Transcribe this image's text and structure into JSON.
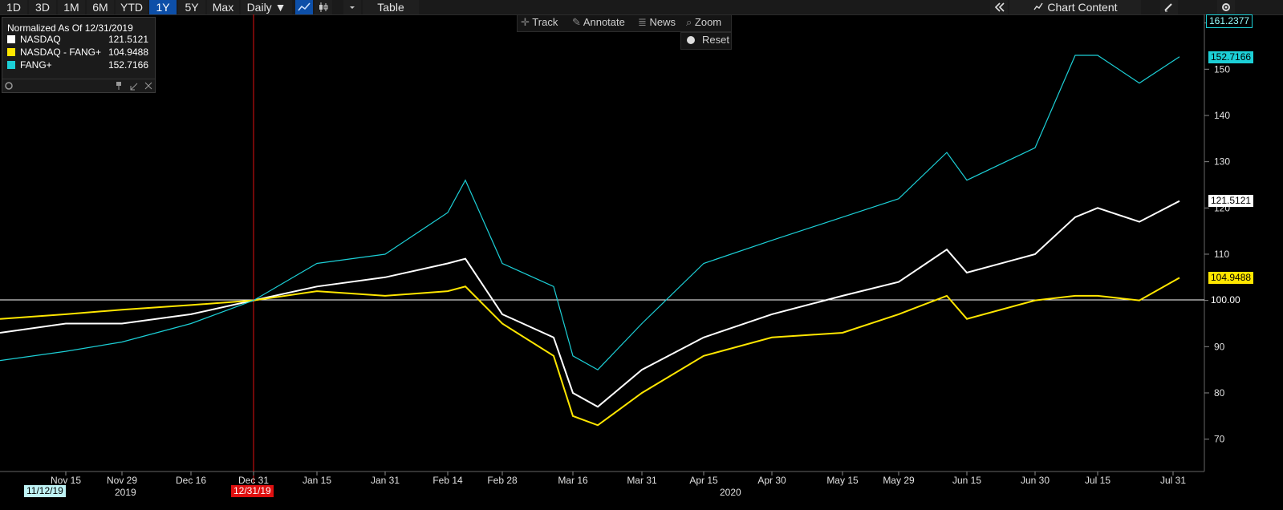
{
  "toolbar": {
    "periods": [
      "1D",
      "3D",
      "1M",
      "6M",
      "YTD",
      "1Y",
      "5Y",
      "Max"
    ],
    "active_period": "1Y",
    "frequency": "Daily ▼",
    "table_label": "Table",
    "chart_content_label": "Chart Content",
    "chart_content_icon": "double-chevron-left-icon"
  },
  "chart_menu": {
    "track": "Track",
    "annotate": "Annotate",
    "news": "News",
    "zoom": "Zoom",
    "reset": "Reset"
  },
  "legend": {
    "title": "Normalized As Of 12/31/2019",
    "items": [
      {
        "name": "NASDAQ",
        "value": "121.5121",
        "color": "#ffffff"
      },
      {
        "name": "NASDAQ - FANG+",
        "value": "104.9488",
        "color": "#ffe600"
      },
      {
        "name": "FANG+",
        "value": "152.7166",
        "color": "#1ccfd6"
      }
    ]
  },
  "right_axis": {
    "top_tag": "161.2377",
    "ticks": [
      "160",
      "150",
      "140",
      "130",
      "120",
      "110",
      "100",
      "90",
      "80",
      "70"
    ],
    "tags": {
      "fang": "152.7166",
      "nasdaq": "121.5121",
      "nasdaq_ex": "104.9488",
      "base": "100.00"
    }
  },
  "x_axis": {
    "labels": [
      "Nov 15",
      "Nov 29",
      "Dec 16",
      "Dec 31",
      "Jan 15",
      "Jan 31",
      "Feb 14",
      "Feb 28",
      "Mar 16",
      "Mar 31",
      "Apr 15",
      "Apr 30",
      "May 15",
      "May 29",
      "Jun 15",
      "Jun 30",
      "Jul 15",
      "Jul 31"
    ],
    "years": [
      "2019",
      "2020"
    ],
    "start_tag": "11/12/19",
    "marker_tag": "12/31/19"
  },
  "chart_data": {
    "type": "line",
    "ylim": [
      63,
      161.5
    ],
    "baseline": 100,
    "x": [
      "Nov 12",
      "Nov 15",
      "Nov 29",
      "Dec 16",
      "Dec 31",
      "Jan 15",
      "Jan 31",
      "Feb 14",
      "Feb 20",
      "Feb 28",
      "Mar 9",
      "Mar 16",
      "Mar 23",
      "Mar 31",
      "Apr 15",
      "Apr 30",
      "May 15",
      "May 29",
      "Jun 9",
      "Jun 15",
      "Jun 30",
      "Jul 10",
      "Jul 15",
      "Jul 24",
      "Jul 31"
    ],
    "series": [
      {
        "name": "NASDAQ",
        "color": "#ffffff",
        "values": [
          93,
          95,
          95,
          97,
          100,
          103,
          105,
          108,
          109,
          97,
          92,
          80,
          77,
          85,
          92,
          97,
          101,
          104,
          111,
          106,
          110,
          118,
          120,
          117,
          121.5
        ]
      },
      {
        "name": "NASDAQ - FANG+",
        "color": "#ffe600",
        "values": [
          96,
          97,
          98,
          99,
          100,
          102,
          101,
          102,
          103,
          95,
          88,
          75,
          73,
          80,
          88,
          92,
          93,
          97,
          101,
          96,
          100,
          101,
          101,
          100,
          104.9
        ]
      },
      {
        "name": "FANG+",
        "color": "#1ccfd6",
        "values": [
          87,
          89,
          91,
          95,
          100,
          108,
          110,
          119,
          126,
          108,
          103,
          88,
          85,
          95,
          108,
          113,
          118,
          122,
          132,
          126,
          133,
          153,
          153,
          147,
          152.7
        ]
      }
    ]
  }
}
